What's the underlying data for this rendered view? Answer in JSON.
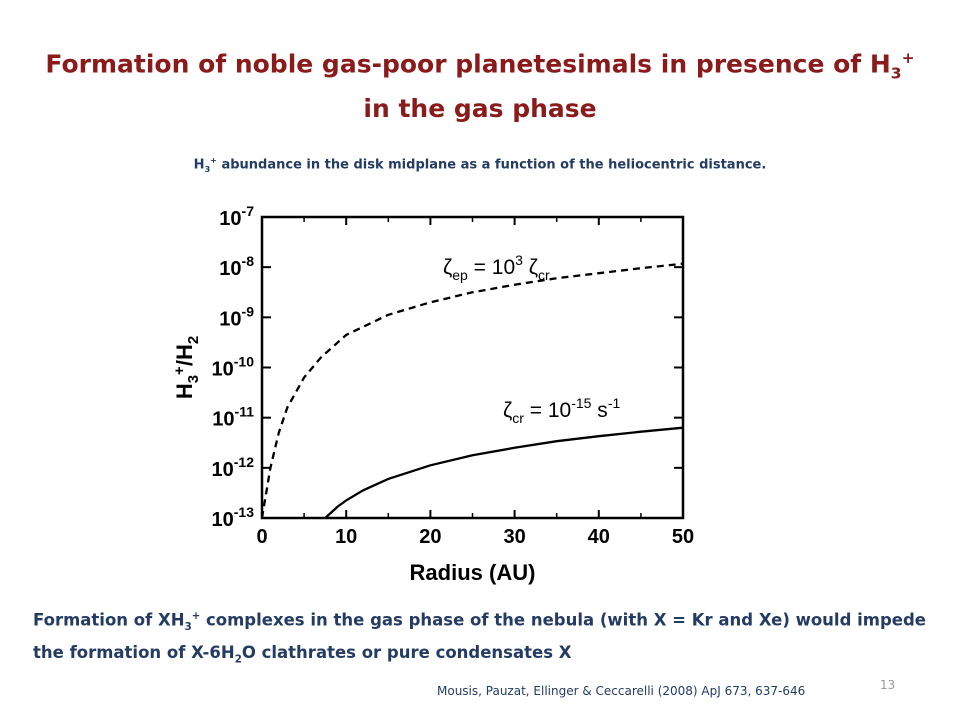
{
  "slide": {
    "title_part1": "Formation of noble gas-poor planetesimals in presence of H",
    "title_sub": "3",
    "title_sup": "+",
    "title_part2": " in the gas phase",
    "subtitle_prefix": "H",
    "subtitle_sub": "3",
    "subtitle_sup": "+",
    "subtitle_rest": " abundance in the disk midplane as a function of the heliocentric distance.",
    "caption_part1": "Formation of XH",
    "caption_sub1": "3",
    "caption_sup1": "+",
    "caption_part2": " complexes in the gas phase of the nebula (with X = Kr and Xe) would impede the formation of X-6H",
    "caption_sub2": "2",
    "caption_part3": "O clathrates or pure condensates X",
    "citation": "Mousis, Pauzat, Ellinger & Ceccarelli (2008) ApJ 673, 637-646",
    "page_number": "13"
  },
  "chart_data": {
    "type": "line",
    "xlabel": "Radius (AU)",
    "ylabel_base": "H",
    "ylabel_sub1": "3",
    "ylabel_sup": "+",
    "ylabel_mid": "/H",
    "ylabel_sub2": "2",
    "xlim": [
      0,
      50
    ],
    "ylim_log10": [
      -13,
      -7
    ],
    "log_scale_y": true,
    "grid": false,
    "x_ticks": [
      0,
      10,
      20,
      30,
      40,
      50
    ],
    "x_tick_labels": [
      "0",
      "10",
      "20",
      "30",
      "40",
      "50"
    ],
    "y_ticks_exp": [
      -7,
      -8,
      -9,
      -10,
      -11,
      -12,
      -13
    ],
    "y_tick_base": "10",
    "y_tick_exp_labels": [
      "-7",
      "-8",
      "-9",
      "-10",
      "-11",
      "-12",
      "-13"
    ],
    "series": [
      {
        "style": "dashed",
        "label_zeta": "ζ",
        "label_sub": "ep",
        "label_eq": " = 10",
        "label_sup": "3",
        "label_zeta2": " ζ",
        "label_sub2": "cr",
        "x": [
          0,
          1,
          2,
          3,
          5,
          7,
          10,
          15,
          20,
          25,
          30,
          35,
          40,
          45,
          50
        ],
        "y_log10": [
          -13,
          -12.0,
          -11.3,
          -10.8,
          -10.2,
          -9.8,
          -9.35,
          -8.95,
          -8.7,
          -8.5,
          -8.35,
          -8.22,
          -8.12,
          -8.02,
          -7.93
        ]
      },
      {
        "style": "solid",
        "label_zeta": "ζ",
        "label_sub": "cr",
        "label_eq": " = 10",
        "label_sup": "-15",
        "label_unit": " s",
        "label_sup2": "-1",
        "x": [
          7.5,
          9,
          10,
          12,
          15,
          20,
          25,
          30,
          35,
          40,
          45,
          50
        ],
        "y_log10": [
          -13,
          -12.77,
          -12.65,
          -12.45,
          -12.22,
          -11.95,
          -11.75,
          -11.6,
          -11.47,
          -11.37,
          -11.28,
          -11.2
        ]
      }
    ]
  }
}
